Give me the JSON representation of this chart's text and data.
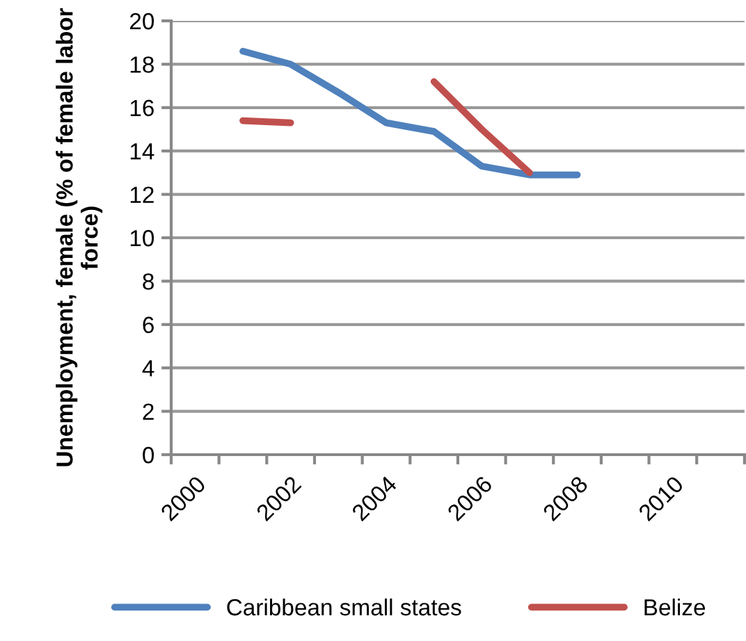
{
  "chart_data": {
    "type": "line",
    "ylabel": "Unemployment, female (% of female labor force)",
    "categories": [
      "2000",
      null,
      "2002",
      null,
      "2004",
      null,
      "2006",
      null,
      "2008",
      null,
      "2010",
      null
    ],
    "series": [
      {
        "name": "Caribbean small states",
        "color": "#4f81bd",
        "values": [
          null,
          18.6,
          18.0,
          16.7,
          15.3,
          14.9,
          13.3,
          12.9,
          12.9,
          null,
          null,
          null
        ]
      },
      {
        "name": "Belize",
        "color": "#c0504d",
        "values": [
          null,
          15.4,
          15.3,
          null,
          null,
          17.2,
          15.0,
          13.0,
          null,
          null,
          null,
          null
        ]
      }
    ],
    "ylim": [
      0,
      20
    ],
    "yticks": [
      0,
      2,
      4,
      6,
      8,
      10,
      12,
      14,
      16,
      18,
      20
    ],
    "grid": "y",
    "legend": "bottom",
    "marker": "none",
    "line_style": "solid"
  }
}
